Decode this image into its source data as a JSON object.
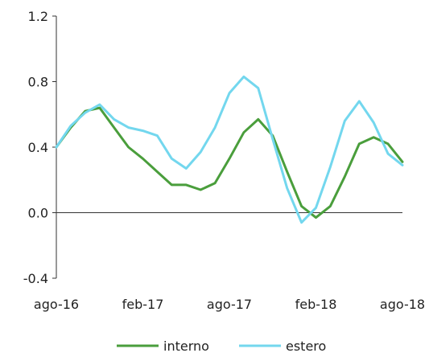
{
  "chart_data": {
    "type": "line",
    "title": "",
    "xlabel": "",
    "ylabel": "",
    "x": [
      "ago-16",
      "set-16",
      "ott-16",
      "nov-16",
      "dic-16",
      "gen-17",
      "feb-17",
      "mar-17",
      "apr-17",
      "mag-17",
      "giu-17",
      "lug-17",
      "ago-17",
      "set-17",
      "ott-17",
      "nov-17",
      "dic-17",
      "gen-18",
      "feb-18",
      "mar-18",
      "apr-18",
      "mag-18",
      "giu-18",
      "lug-18",
      "ago-18"
    ],
    "x_tick_labels": [
      "ago-16",
      "feb-17",
      "ago-17",
      "feb-18",
      "ago-18"
    ],
    "ylim": [
      -0.4,
      1.2
    ],
    "y_ticks": [
      "1.2",
      "0.8",
      "0.4",
      "0.0",
      "-0.4"
    ],
    "grid": false,
    "legend_position": "bottom",
    "series": [
      {
        "name": "interno",
        "color": "#4a9e3c",
        "values": [
          0.4,
          0.52,
          0.62,
          0.64,
          0.52,
          0.4,
          0.33,
          0.25,
          0.17,
          0.17,
          0.14,
          0.18,
          0.33,
          0.49,
          0.57,
          0.47,
          0.25,
          0.04,
          -0.03,
          0.04,
          0.22,
          0.42,
          0.46,
          0.42,
          0.31
        ]
      },
      {
        "name": "estero",
        "color": "#73d7ee",
        "values": [
          0.4,
          0.53,
          0.61,
          0.66,
          0.57,
          0.52,
          0.5,
          0.47,
          0.33,
          0.27,
          0.37,
          0.52,
          0.73,
          0.83,
          0.76,
          0.45,
          0.15,
          -0.06,
          0.03,
          0.28,
          0.56,
          0.68,
          0.55,
          0.36,
          0.29
        ]
      }
    ]
  }
}
